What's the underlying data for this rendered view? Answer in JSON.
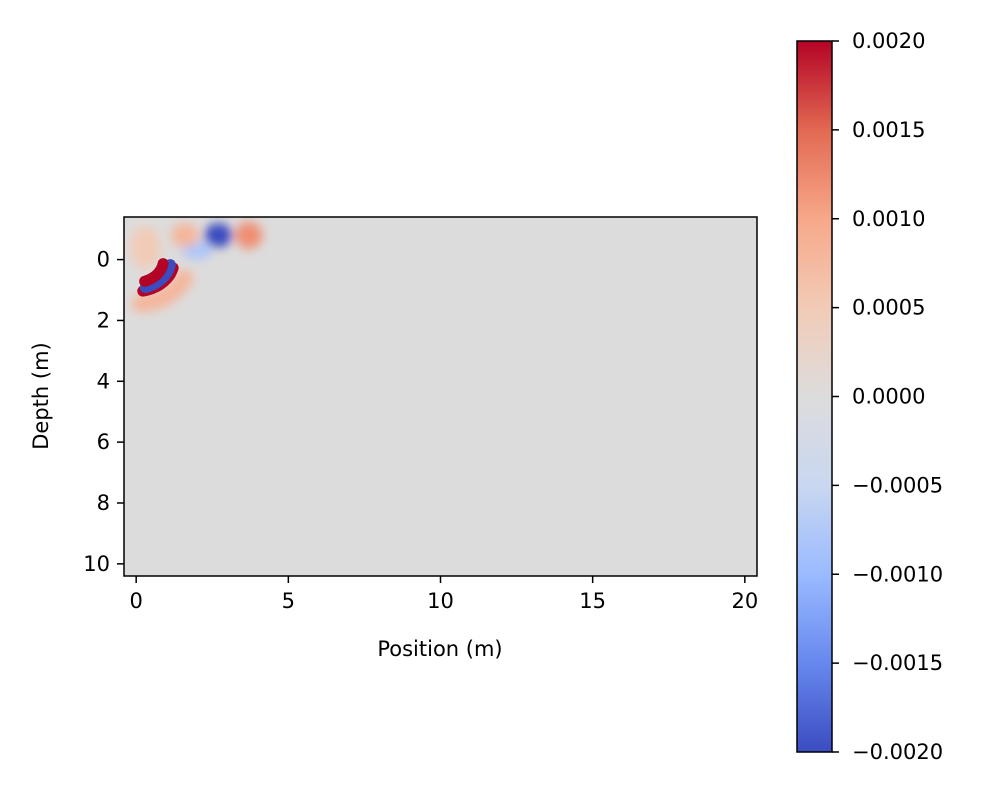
{
  "chart_data": {
    "type": "heatmap",
    "title": "",
    "xlabel": "Position (m)",
    "ylabel": "Depth (m)",
    "xlim": [
      -0.4,
      20.4
    ],
    "ylim": [
      10.4,
      -1.4
    ],
    "x_ticks": [
      0,
      5,
      10,
      15,
      20
    ],
    "x_tick_labels": [
      "0",
      "5",
      "10",
      "15",
      "20"
    ],
    "y_ticks": [
      0,
      2,
      4,
      6,
      8,
      10
    ],
    "y_tick_labels": [
      "0",
      "2",
      "4",
      "6",
      "8",
      "10"
    ],
    "background_value": 0.0,
    "colormap": "coolwarm",
    "colorbar": {
      "vmin": -0.002,
      "vmax": 0.002,
      "ticks": [
        0.002,
        0.0015,
        0.001,
        0.0005,
        0.0,
        -0.0005,
        -0.001,
        -0.0015,
        -0.002
      ],
      "tick_labels": [
        "0.0020",
        "0.0015",
        "0.0010",
        "0.0005",
        "0.0000",
        "−0.0005",
        "−0.0010",
        "−0.0015",
        "−0.0020"
      ],
      "colors": [
        "#3b4cc0",
        "#6788ee",
        "#9abbff",
        "#c9d7f0",
        "#dddcdc",
        "#f2cbb7",
        "#f7a889",
        "#e26952",
        "#b40426"
      ]
    },
    "features": [
      {
        "kind": "band",
        "value": 0.002,
        "center": [
          0.0,
          0.0
        ],
        "radius": 1.05,
        "theta": [
          10,
          75
        ]
      },
      {
        "kind": "band",
        "value": -0.002,
        "center": [
          0.0,
          0.0
        ],
        "radius": 0.95,
        "theta": [
          15,
          80
        ]
      },
      {
        "kind": "band",
        "value": 0.002,
        "center": [
          0.0,
          0.0
        ],
        "radius": 0.75,
        "theta": [
          18,
          80
        ]
      },
      {
        "kind": "band",
        "value": 0.0008,
        "center": [
          0.0,
          0.0
        ],
        "radius": 1.45,
        "theta": [
          5,
          65
        ]
      },
      {
        "kind": "blob",
        "value": -0.002,
        "x": 2.7,
        "y": -0.8,
        "rx": 0.45,
        "ry": 0.4
      },
      {
        "kind": "blob",
        "value": -0.0008,
        "x": 2.0,
        "y": -0.3,
        "rx": 0.5,
        "ry": 0.3
      },
      {
        "kind": "blob",
        "value": 0.0012,
        "x": 3.7,
        "y": -0.8,
        "rx": 0.45,
        "ry": 0.45
      },
      {
        "kind": "blob",
        "value": 0.0008,
        "x": 1.6,
        "y": -0.8,
        "rx": 0.45,
        "ry": 0.4
      },
      {
        "kind": "blob",
        "value": 0.0005,
        "x": 0.3,
        "y": -0.4,
        "rx": 0.5,
        "ry": 0.7
      }
    ]
  }
}
